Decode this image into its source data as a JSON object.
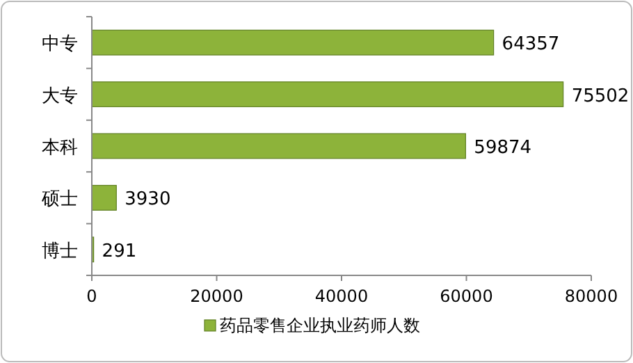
{
  "chart_data": {
    "type": "bar",
    "orientation": "horizontal",
    "categories": [
      "中专",
      "大专",
      "本科",
      "硕士",
      "博士"
    ],
    "series": [
      {
        "name": "药品零售企业执业药师人数",
        "color": "#8db33a",
        "values": [
          64357,
          75502,
          59874,
          3930,
          291
        ]
      }
    ],
    "xlim": [
      0,
      80000
    ],
    "xticks": [
      0,
      20000,
      40000,
      60000,
      80000
    ],
    "data_labels": true,
    "legend": "bottom",
    "grid": false
  }
}
